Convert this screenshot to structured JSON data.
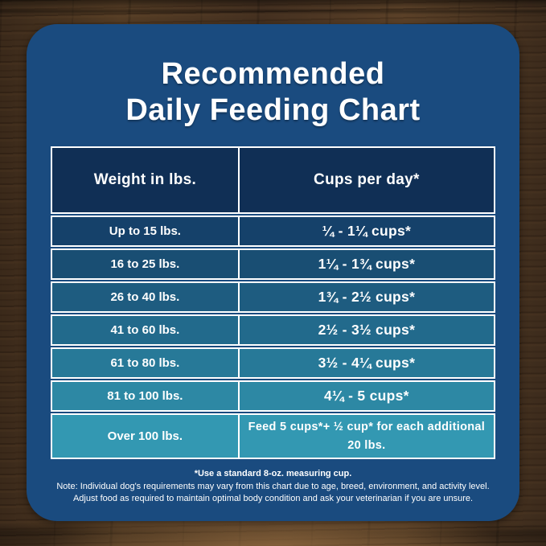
{
  "chart_data": {
    "type": "table",
    "title": "Recommended Daily Feeding Chart",
    "columns": [
      "Weight in lbs.",
      "Cups per day*"
    ],
    "rows": [
      [
        "Up to 15 lbs.",
        "¼ - 1¼ cups*"
      ],
      [
        "16 to 25 lbs.",
        "1¼ - 1¾ cups*"
      ],
      [
        "26 to 40 lbs.",
        "1¾ - 2½ cups*"
      ],
      [
        "41 to 60 lbs.",
        "2½ - 3½ cups*"
      ],
      [
        "61 to 80 lbs.",
        "3½ - 4¼ cups*"
      ],
      [
        "81 to 100 lbs.",
        "4¼ - 5 cups*"
      ],
      [
        "Over 100 lbs.",
        "Feed 5 cups*+ ½ cup* for each additional 20 lbs."
      ]
    ],
    "footnotes": [
      "*Use a standard 8-oz. measuring cup.",
      "Note: Individual dog's requirements may vary from this chart due to age, breed, environment, and activity level.",
      "Adjust food as required to maintain optimal body condition and ask your veterinarian if you are unsure."
    ]
  },
  "card": {
    "title_line1": "Recommended",
    "title_line2": "Daily Feeding Chart"
  },
  "table": {
    "header": {
      "weight": "Weight in lbs.",
      "cups": "Cups per day*"
    },
    "rows": [
      {
        "weight": "Up to 15 lbs.",
        "cups": "¼ - 1¼ cups*",
        "bg": "#15416a"
      },
      {
        "weight": "16 to 25 lbs.",
        "cups": "1¼ - 1¾ cups*",
        "bg": "#194e73"
      },
      {
        "weight": "26 to 40 lbs.",
        "cups": "1¾ - 2½ cups*",
        "bg": "#1e5c80"
      },
      {
        "weight": "41 to 60 lbs.",
        "cups": "2½ - 3½ cups*",
        "bg": "#226a8c"
      },
      {
        "weight": "61 to 80 lbs.",
        "cups": "3½ - 4¼ cups*",
        "bg": "#277998"
      },
      {
        "weight": "81 to 100 lbs.",
        "cups": "4¼ - 5 cups*",
        "bg": "#2d88a4"
      },
      {
        "weight": "Over 100 lbs.",
        "cups": "Feed 5 cups*+ ½ cup* for each additional 20 lbs.",
        "bg": "#3398b2"
      }
    ]
  },
  "footer": {
    "footnote": "*Use a standard 8-oz. measuring cup.",
    "note1": "Note: Individual dog's requirements may vary from this chart due to age, breed, environment, and activity level.",
    "note2": "Adjust food as required to maintain optimal body condition and ask your veterinarian if you are unsure."
  },
  "colors": {
    "card_bg": "#1a4b7f",
    "header_bg": "#102f55",
    "border": "#ffffff",
    "text": "#ffffff",
    "wood_base": "#4a3422"
  }
}
